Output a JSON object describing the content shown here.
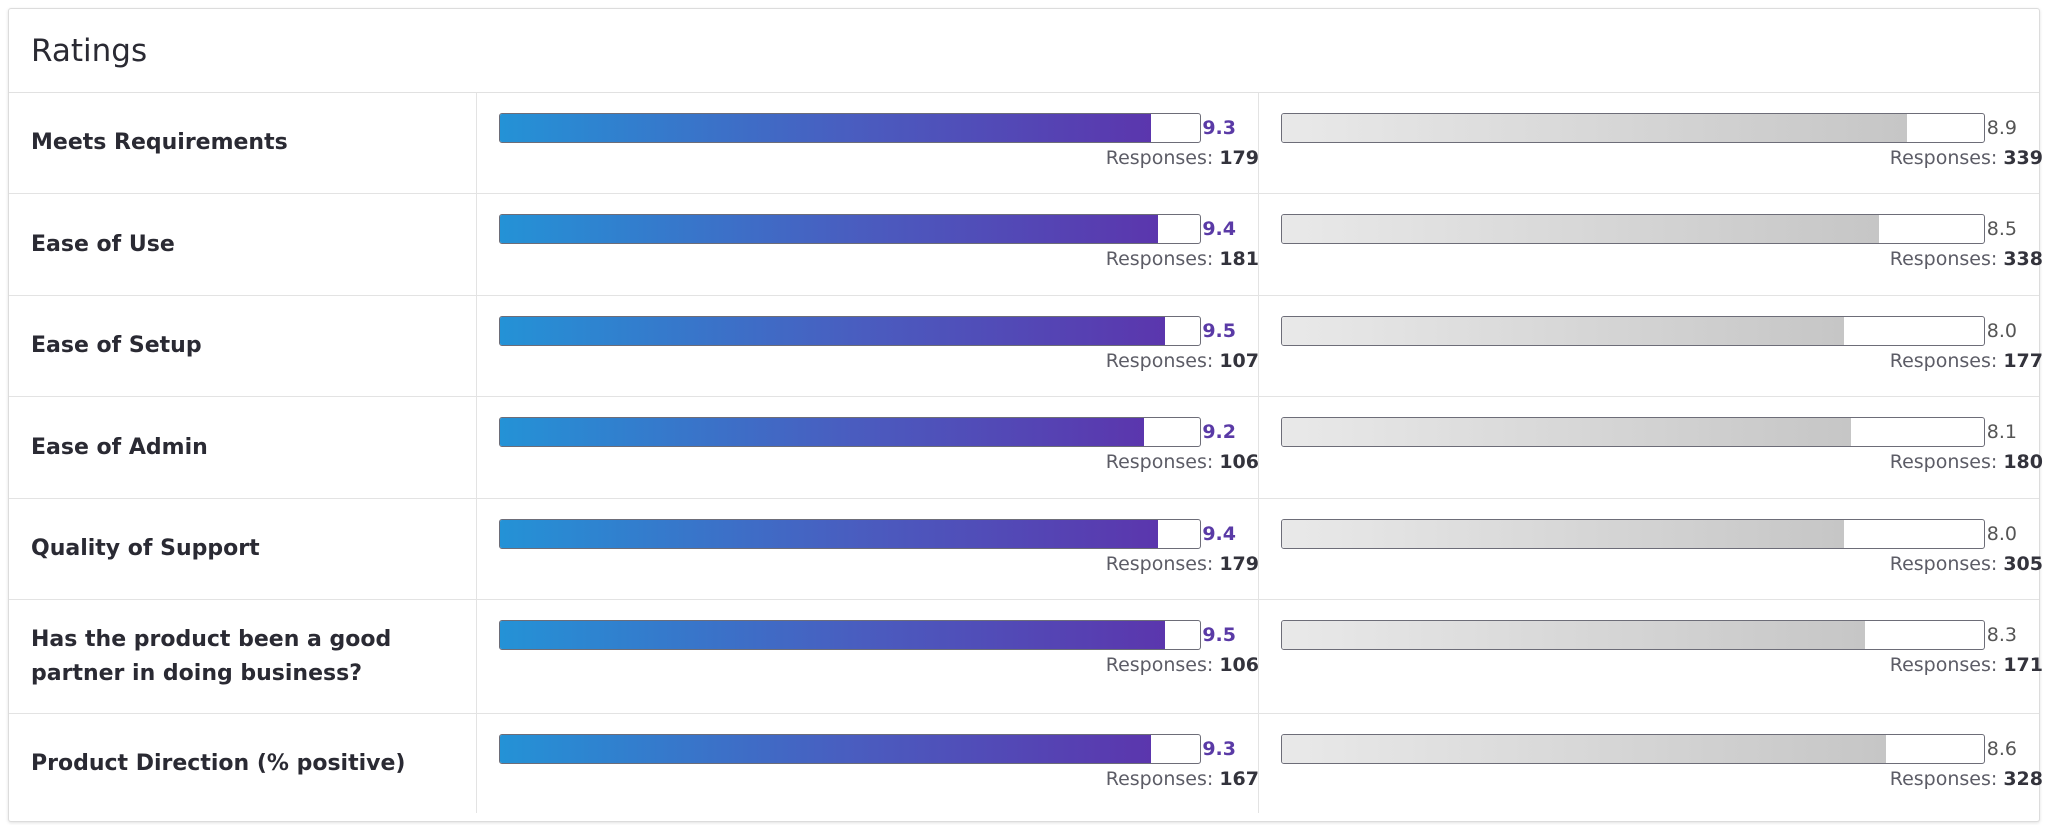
{
  "card": {
    "title": "Ratings"
  },
  "responses_label": "Responses: ",
  "colors": {
    "primary_start": "#2492d6",
    "primary_end": "#5b36ad",
    "secondary_start": "#e9e9e9",
    "secondary_end": "#c6c6c6",
    "primary_score": "#5a3aa6"
  },
  "chart_data": {
    "type": "bar",
    "title": "Ratings",
    "xlim": [
      0,
      10
    ],
    "categories": [
      "Meets Requirements",
      "Ease of Use",
      "Ease of Setup",
      "Ease of Admin",
      "Quality of Support",
      "Has the product been a good partner in doing business?",
      "Product Direction (% positive)"
    ],
    "series": [
      {
        "values": [
          "9.3",
          "9.4",
          "9.5",
          "9.2",
          "9.4",
          "9.5",
          "9.3"
        ],
        "responses": [
          "179",
          "181",
          "107",
          "106",
          "179",
          "106",
          "167"
        ]
      },
      {
        "values": [
          "8.9",
          "8.5",
          "8.0",
          "8.1",
          "8.0",
          "8.3",
          "8.6"
        ],
        "responses": [
          "339",
          "338",
          "177",
          "180",
          "305",
          "171",
          "328"
        ]
      }
    ]
  }
}
